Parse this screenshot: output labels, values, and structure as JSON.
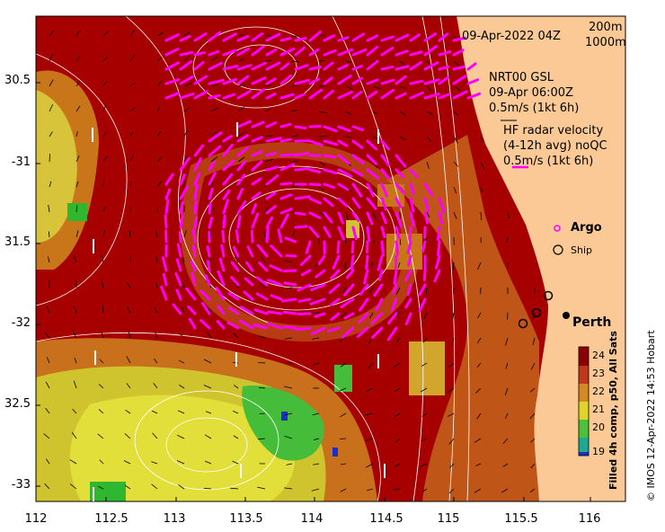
{
  "map": {
    "timestamp": "09-Apr-2022 04Z",
    "depth_contours": [
      "200m",
      "1000m"
    ],
    "model_label": "NRT00 GSL",
    "model_time": "09-Apr 06:00Z",
    "model_scale": "0.5m/s (1kt 6h)",
    "radar_title": "HF radar velocity",
    "radar_detail": "(4-12h avg) noQC",
    "radar_scale": "0.5m/s (1kt 6h)",
    "legend_argo": "Argo",
    "legend_ship": "Ship",
    "city": "Perth",
    "colorbar_title": "Filled 4h comp, p50, All Sats",
    "copyright": "© IMOS 12-Apr-2022 14:53 Hobart",
    "lat_ticks": [
      "30.5",
      "-31",
      "31.5",
      "-32",
      "32.5",
      "-33"
    ],
    "lon_ticks": [
      "112",
      "112.5",
      "113",
      "113.5",
      "114",
      "114.5",
      "115",
      "115.5",
      "116"
    ],
    "colorbar_ticks": [
      "24",
      "23",
      "22",
      "21",
      "20",
      "19"
    ],
    "colors": {
      "land": "#fbc995",
      "sst_hot": "#a60000",
      "sst_warm": "#c96a1a",
      "sst_mid": "#d9d52a",
      "sst_cool": "#2fb82f",
      "radar_arrow": "#ff00ff",
      "model_arrow": "#000000",
      "contour": "#ffffff"
    }
  }
}
